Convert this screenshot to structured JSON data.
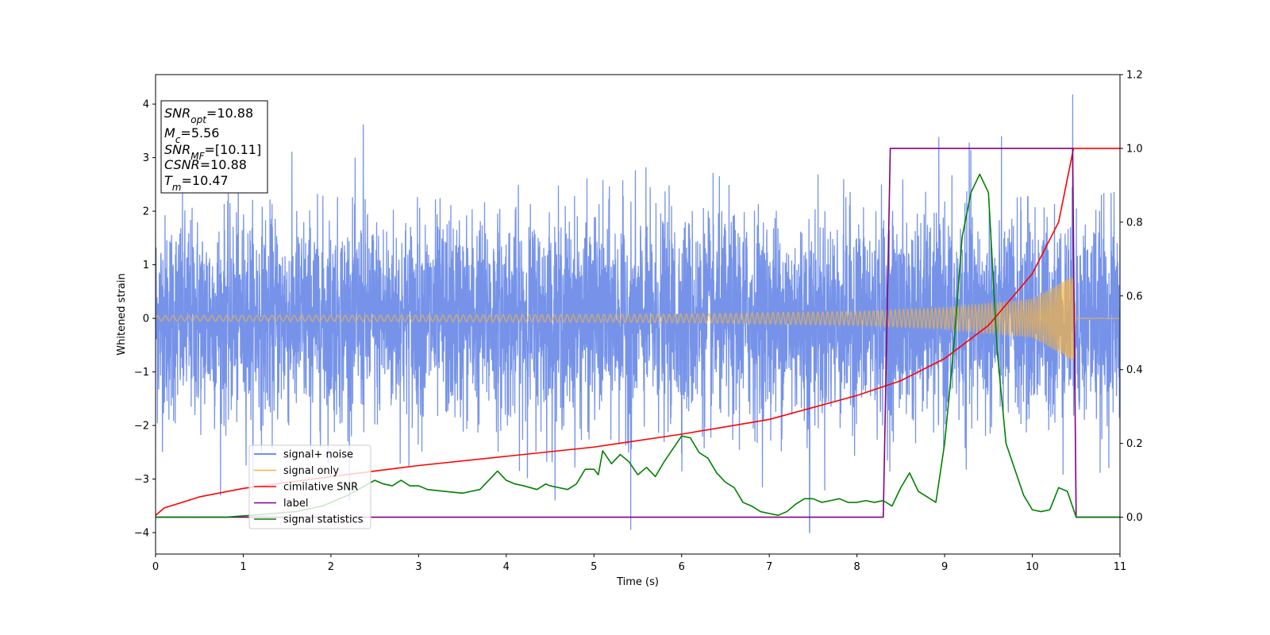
{
  "chart_data": {
    "type": "line",
    "xlabel": "Time (s)",
    "ylabel": "Whitened strain",
    "xlim": [
      0,
      11
    ],
    "ylim_left": [
      -4.4,
      4.55
    ],
    "ylim_right": [
      -0.1,
      1.2
    ],
    "x_ticks": [
      0,
      1,
      2,
      3,
      4,
      5,
      6,
      7,
      8,
      9,
      10,
      11
    ],
    "x_tick_labels": [
      "0",
      "1",
      "2",
      "3",
      "4",
      "5",
      "6",
      "7",
      "8",
      "9",
      "10",
      "11"
    ],
    "y_ticks_left": [
      -4,
      -3,
      -2,
      -1,
      0,
      1,
      2,
      3,
      4
    ],
    "y_tick_labels_left": [
      "−4",
      "−3",
      "−2",
      "−1",
      "0",
      "1",
      "2",
      "3",
      "4"
    ],
    "y_ticks_right": [
      0.0,
      0.2,
      0.4,
      0.6,
      0.8,
      1.0,
      1.2
    ],
    "y_tick_labels_right": [
      "0.0",
      "0.2",
      "0.4",
      "0.6",
      "0.8",
      "1.0",
      "1.2"
    ],
    "grid": false,
    "legend_position": "lower-left",
    "series": [
      {
        "name": "signal+ noise",
        "axis": "left",
        "color": "#4169e1",
        "kind": "noise",
        "approx_amplitude_range": [
          -4.0,
          4.2
        ],
        "notable_peaks": [
          [
            2.37,
            3.62
          ],
          [
            9.28,
            3.28
          ],
          [
            10.46,
            4.18
          ],
          [
            5.42,
            -3.95
          ],
          [
            7.46,
            -4.0
          ]
        ]
      },
      {
        "name": "signal only",
        "axis": "left",
        "color": "#f5b342",
        "kind": "chirp",
        "merger_time": 10.47,
        "envelope": [
          [
            0,
            0.05
          ],
          [
            3,
            0.06
          ],
          [
            6,
            0.08
          ],
          [
            8,
            0.13
          ],
          [
            9,
            0.2
          ],
          [
            10,
            0.36
          ],
          [
            10.47,
            0.8
          ],
          [
            10.5,
            0.0
          ],
          [
            11,
            0.0
          ]
        ]
      },
      {
        "name": "cimilative SNR",
        "axis": "right",
        "color": "#ff0000",
        "points": [
          [
            0,
            0.005
          ],
          [
            0.1,
            0.025
          ],
          [
            0.5,
            0.055
          ],
          [
            1.0,
            0.078
          ],
          [
            2.0,
            0.11
          ],
          [
            3.0,
            0.14
          ],
          [
            4.0,
            0.165
          ],
          [
            5.0,
            0.19
          ],
          [
            6.0,
            0.225
          ],
          [
            7.0,
            0.265
          ],
          [
            8.0,
            0.33
          ],
          [
            8.5,
            0.37
          ],
          [
            9.0,
            0.43
          ],
          [
            9.5,
            0.52
          ],
          [
            10.0,
            0.66
          ],
          [
            10.3,
            0.8
          ],
          [
            10.47,
            1.0
          ],
          [
            11.0,
            1.0
          ]
        ]
      },
      {
        "name": "label",
        "axis": "right",
        "color": "#800080",
        "points": [
          [
            0,
            0.0
          ],
          [
            8.3,
            0.0
          ],
          [
            8.38,
            1.0
          ],
          [
            10.46,
            1.0
          ],
          [
            10.5,
            0.0
          ],
          [
            11,
            0.0
          ]
        ]
      },
      {
        "name": "signal statistics",
        "axis": "right",
        "color": "#008000",
        "points": [
          [
            0,
            0.0
          ],
          [
            0.5,
            0.0
          ],
          [
            0.8,
            0.0
          ],
          [
            1.2,
            0.007
          ],
          [
            1.6,
            0.015
          ],
          [
            1.9,
            0.03
          ],
          [
            2.2,
            0.06
          ],
          [
            2.35,
            0.08
          ],
          [
            2.5,
            0.1
          ],
          [
            2.6,
            0.09
          ],
          [
            2.7,
            0.085
          ],
          [
            2.8,
            0.1
          ],
          [
            2.9,
            0.085
          ],
          [
            3.0,
            0.085
          ],
          [
            3.1,
            0.075
          ],
          [
            3.3,
            0.07
          ],
          [
            3.5,
            0.065
          ],
          [
            3.6,
            0.07
          ],
          [
            3.7,
            0.075
          ],
          [
            3.8,
            0.1
          ],
          [
            3.9,
            0.125
          ],
          [
            4.0,
            0.1
          ],
          [
            4.1,
            0.09
          ],
          [
            4.2,
            0.085
          ],
          [
            4.35,
            0.075
          ],
          [
            4.45,
            0.09
          ],
          [
            4.5,
            0.085
          ],
          [
            4.6,
            0.08
          ],
          [
            4.7,
            0.075
          ],
          [
            4.8,
            0.09
          ],
          [
            4.9,
            0.13
          ],
          [
            5.0,
            0.13
          ],
          [
            5.05,
            0.115
          ],
          [
            5.1,
            0.18
          ],
          [
            5.2,
            0.145
          ],
          [
            5.3,
            0.17
          ],
          [
            5.4,
            0.15
          ],
          [
            5.5,
            0.115
          ],
          [
            5.6,
            0.135
          ],
          [
            5.7,
            0.11
          ],
          [
            5.8,
            0.15
          ],
          [
            5.9,
            0.185
          ],
          [
            6.0,
            0.22
          ],
          [
            6.1,
            0.215
          ],
          [
            6.2,
            0.175
          ],
          [
            6.3,
            0.16
          ],
          [
            6.4,
            0.12
          ],
          [
            6.5,
            0.095
          ],
          [
            6.6,
            0.08
          ],
          [
            6.7,
            0.04
          ],
          [
            6.8,
            0.03
          ],
          [
            6.9,
            0.015
          ],
          [
            7.0,
            0.01
          ],
          [
            7.1,
            0.005
          ],
          [
            7.2,
            0.015
          ],
          [
            7.3,
            0.035
          ],
          [
            7.4,
            0.05
          ],
          [
            7.5,
            0.05
          ],
          [
            7.6,
            0.04
          ],
          [
            7.7,
            0.045
          ],
          [
            7.8,
            0.05
          ],
          [
            7.9,
            0.04
          ],
          [
            8.0,
            0.04
          ],
          [
            8.1,
            0.045
          ],
          [
            8.2,
            0.04
          ],
          [
            8.3,
            0.045
          ],
          [
            8.4,
            0.03
          ],
          [
            8.5,
            0.08
          ],
          [
            8.6,
            0.12
          ],
          [
            8.7,
            0.07
          ],
          [
            8.8,
            0.055
          ],
          [
            8.9,
            0.04
          ],
          [
            9.0,
            0.2
          ],
          [
            9.1,
            0.45
          ],
          [
            9.2,
            0.76
          ],
          [
            9.3,
            0.88
          ],
          [
            9.4,
            0.93
          ],
          [
            9.5,
            0.88
          ],
          [
            9.6,
            0.45
          ],
          [
            9.7,
            0.2
          ],
          [
            9.8,
            0.13
          ],
          [
            9.9,
            0.06
          ],
          [
            10.0,
            0.02
          ],
          [
            10.1,
            0.015
          ],
          [
            10.2,
            0.02
          ],
          [
            10.3,
            0.08
          ],
          [
            10.4,
            0.07
          ],
          [
            10.5,
            0.0
          ],
          [
            11.0,
            0.0
          ]
        ]
      }
    ]
  },
  "info_box": {
    "snr_opt": {
      "symbol": "SNR",
      "sub": "opt",
      "value": "=10.88"
    },
    "mc": {
      "symbol": "M",
      "sub": "c",
      "value": "=5.56"
    },
    "snr_mf": {
      "symbol": "SNR",
      "sub": "MF",
      "value": "=[10.11]"
    },
    "csnr": {
      "symbol": "CSNR",
      "value": "=10.88"
    },
    "tm": {
      "symbol": "T",
      "sub": "m",
      "value": "=10.47"
    }
  },
  "legend": {
    "items": [
      {
        "label": "signal+ noise",
        "color": "#4169e1"
      },
      {
        "label": "signal only",
        "color": "#f5b342"
      },
      {
        "label": "cimilative SNR",
        "color": "#ff0000"
      },
      {
        "label": "label",
        "color": "#800080"
      },
      {
        "label": "signal statistics",
        "color": "#008000"
      }
    ]
  }
}
